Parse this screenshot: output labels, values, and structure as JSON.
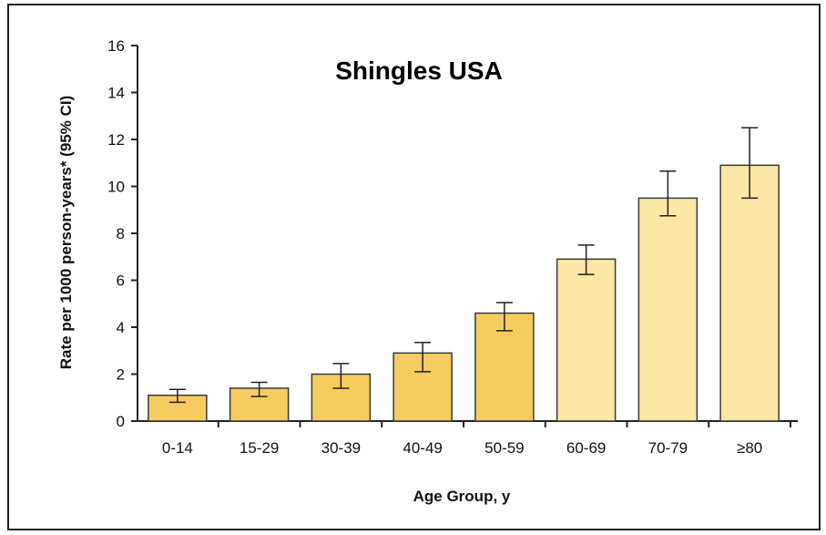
{
  "chart_data": {
    "type": "bar",
    "title": "Shingles USA",
    "xlabel": "Age Group, y",
    "ylabel": "Rate per 1000 person-years* (95% CI)",
    "categories": [
      "0-14",
      "15-29",
      "30-39",
      "40-49",
      "50-59",
      "60-69",
      "70-79",
      "≥80"
    ],
    "values": [
      1.1,
      1.4,
      2.0,
      2.9,
      4.6,
      6.9,
      9.5,
      10.9
    ],
    "ci_low": [
      0.8,
      1.05,
      1.4,
      2.1,
      3.85,
      6.25,
      8.75,
      9.5
    ],
    "ci_high": [
      1.35,
      1.65,
      2.45,
      3.35,
      5.05,
      7.5,
      10.65,
      12.5
    ],
    "ylim": [
      0,
      16
    ],
    "yticks": [
      0,
      2,
      4,
      6,
      8,
      10,
      12,
      14,
      16
    ],
    "grid": false,
    "colors": {
      "bar_dark": "#f6cc60",
      "bar_light": "#fbe7a6",
      "bar_edge": "#3a3a3a"
    }
  }
}
